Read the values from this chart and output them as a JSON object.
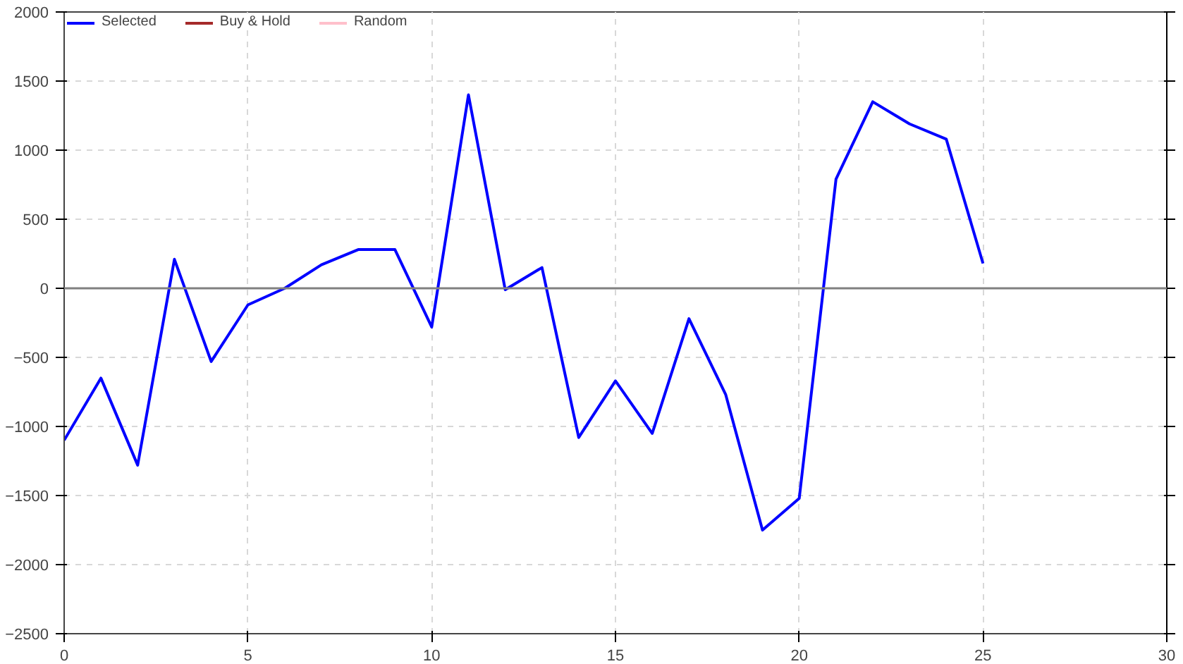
{
  "chart_data": {
    "type": "line",
    "x": [
      0,
      1,
      2,
      3,
      4,
      5,
      6,
      7,
      8,
      9,
      10,
      11,
      12,
      13,
      14,
      15,
      16,
      17,
      18,
      19,
      20,
      21,
      22,
      23,
      24,
      25
    ],
    "series": [
      {
        "name": "Selected",
        "color": "#0000ff",
        "values": [
          -1100,
          -650,
          -1280,
          210,
          -530,
          -120,
          0,
          170,
          280,
          280,
          -280,
          1400,
          -10,
          150,
          -1080,
          -670,
          -1050,
          -220,
          -770,
          -1750,
          -1520,
          790,
          1350,
          1190,
          1080,
          180
        ]
      },
      {
        "name": "Buy & Hold",
        "color": "#a52a2a",
        "values": [
          null,
          null,
          null,
          null,
          null,
          null,
          null,
          null,
          null,
          null,
          null,
          null,
          null,
          null,
          null,
          null,
          null,
          null,
          null,
          null,
          null,
          null,
          null,
          null,
          null,
          null
        ]
      },
      {
        "name": "Random",
        "color": "#ffc0cb",
        "values": [
          null,
          null,
          null,
          null,
          null,
          null,
          null,
          null,
          null,
          null,
          null,
          null,
          null,
          null,
          null,
          null,
          null,
          null,
          null,
          null,
          null,
          null,
          null,
          null,
          null,
          null
        ]
      }
    ],
    "xlim": [
      0,
      30
    ],
    "xticks": [
      0,
      5,
      10,
      15,
      20,
      25,
      30
    ],
    "ylim": [
      -2500,
      2000
    ],
    "yticks": [
      -2500,
      -2000,
      -1500,
      -1000,
      -500,
      0,
      500,
      1000,
      1500,
      2000
    ],
    "ref_lines": [
      {
        "axis": "y",
        "value": 0,
        "color": "#808080"
      }
    ],
    "grid": true,
    "legend": "top left",
    "line_style": "solid",
    "marker": "none"
  }
}
